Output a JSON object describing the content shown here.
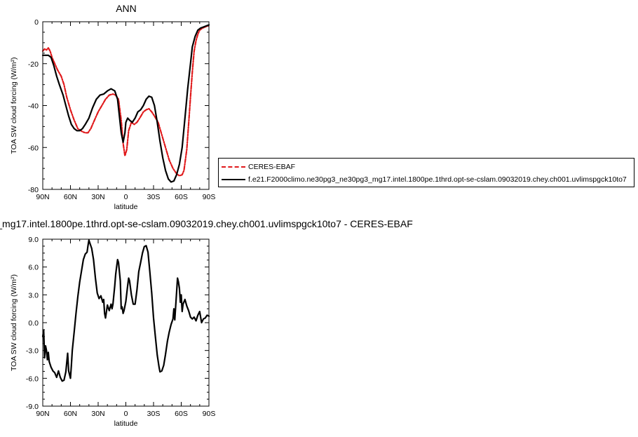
{
  "chart_data": [
    {
      "type": "line",
      "title": "ANN",
      "xlabel": "latitude",
      "ylabel": "TOA SW cloud forcing (W/m²)",
      "xlim": [
        90,
        -90
      ],
      "ylim": [
        -80,
        0
      ],
      "xticks": [
        90,
        60,
        30,
        0,
        -30,
        -60,
        -90
      ],
      "xtick_labels": [
        "90N",
        "60N",
        "30N",
        "0",
        "30S",
        "60S",
        "90S"
      ],
      "yticks": [
        0,
        -20,
        -40,
        -60,
        -80
      ],
      "ytick_labels": [
        "0",
        "-20",
        "-40",
        "-60",
        "-80"
      ],
      "legend_position": "right",
      "grid": false,
      "series": [
        {
          "name": "CERES-EBAF",
          "color": "#e0191b",
          "style": "dash-dot",
          "points": [
            [
              90,
              -14
            ],
            [
              88,
              -13
            ],
            [
              86,
              -13.5
            ],
            [
              84,
              -12.5
            ],
            [
              82,
              -14
            ],
            [
              80,
              -17
            ],
            [
              77,
              -20
            ],
            [
              74,
              -23
            ],
            [
              70,
              -26
            ],
            [
              67,
              -30
            ],
            [
              64,
              -36
            ],
            [
              60,
              -42
            ],
            [
              56,
              -47
            ],
            [
              52,
              -51
            ],
            [
              47,
              -52.5
            ],
            [
              44,
              -53
            ],
            [
              41,
              -53
            ],
            [
              38,
              -51
            ],
            [
              34,
              -47
            ],
            [
              30,
              -43
            ],
            [
              26,
              -40
            ],
            [
              22,
              -37
            ],
            [
              18,
              -35
            ],
            [
              14,
              -34.5
            ],
            [
              11,
              -35
            ],
            [
              8,
              -37
            ],
            [
              5,
              -47
            ],
            [
              3,
              -58
            ],
            [
              1,
              -64
            ],
            [
              -1,
              -61
            ],
            [
              -3,
              -52
            ],
            [
              -6,
              -48
            ],
            [
              -9,
              -49
            ],
            [
              -12,
              -48
            ],
            [
              -15,
              -46
            ],
            [
              -19,
              -43
            ],
            [
              -22,
              -42
            ],
            [
              -25,
              -41.5
            ],
            [
              -28,
              -43
            ],
            [
              -31,
              -45
            ],
            [
              -35,
              -48
            ],
            [
              -39,
              -54
            ],
            [
              -43,
              -60
            ],
            [
              -47,
              -66
            ],
            [
              -51,
              -70
            ],
            [
              -55,
              -72.5
            ],
            [
              -58,
              -73.5
            ],
            [
              -61,
              -73
            ],
            [
              -63,
              -71
            ],
            [
              -66,
              -61
            ],
            [
              -68,
              -49
            ],
            [
              -70,
              -36
            ],
            [
              -72,
              -24
            ],
            [
              -74,
              -14
            ],
            [
              -76,
              -9
            ],
            [
              -78,
              -6
            ],
            [
              -80,
              -4
            ],
            [
              -83,
              -3
            ],
            [
              -86,
              -2.5
            ],
            [
              -88,
              -2
            ],
            [
              -90,
              -2
            ]
          ]
        },
        {
          "name": "f.e21.F2000climo.ne30pg3_ne30pg3_mg17.intel.1800pe.1thrd.opt-se-cslam.09032019.chey.ch001.uvlimspgck10to7",
          "color": "#000000",
          "style": "solid",
          "points": [
            [
              90,
              -16
            ],
            [
              87,
              -16
            ],
            [
              84,
              -16
            ],
            [
              81,
              -17
            ],
            [
              78,
              -21
            ],
            [
              75,
              -26
            ],
            [
              72,
              -30
            ],
            [
              68,
              -35
            ],
            [
              65,
              -40
            ],
            [
              62,
              -45
            ],
            [
              59,
              -49
            ],
            [
              56,
              -51
            ],
            [
              53,
              -52
            ],
            [
              50,
              -52
            ],
            [
              47,
              -51
            ],
            [
              44,
              -49
            ],
            [
              40,
              -46
            ],
            [
              36,
              -41
            ],
            [
              32,
              -37
            ],
            [
              28,
              -35
            ],
            [
              24,
              -34.5
            ],
            [
              20,
              -33
            ],
            [
              16,
              -32
            ],
            [
              12,
              -33
            ],
            [
              9,
              -37
            ],
            [
              7,
              -45
            ],
            [
              5,
              -53
            ],
            [
              3,
              -57.5
            ],
            [
              1,
              -53
            ],
            [
              0,
              -48
            ],
            [
              -2,
              -46
            ],
            [
              -4,
              -47
            ],
            [
              -7,
              -48
            ],
            [
              -10,
              -46
            ],
            [
              -13,
              -43
            ],
            [
              -16,
              -42
            ],
            [
              -19,
              -40
            ],
            [
              -22,
              -37
            ],
            [
              -25,
              -35.5
            ],
            [
              -28,
              -36
            ],
            [
              -31,
              -40
            ],
            [
              -34,
              -48
            ],
            [
              -37,
              -57
            ],
            [
              -40,
              -65
            ],
            [
              -43,
              -71
            ],
            [
              -46,
              -75
            ],
            [
              -49,
              -76.5
            ],
            [
              -52,
              -76
            ],
            [
              -55,
              -73
            ],
            [
              -58,
              -68
            ],
            [
              -61,
              -60
            ],
            [
              -64,
              -46
            ],
            [
              -67,
              -32
            ],
            [
              -70,
              -20
            ],
            [
              -72,
              -12
            ],
            [
              -75,
              -7
            ],
            [
              -78,
              -4
            ],
            [
              -81,
              -3
            ],
            [
              -84,
              -2.5
            ],
            [
              -87,
              -2
            ],
            [
              -90,
              -1.5
            ]
          ]
        }
      ]
    },
    {
      "type": "line",
      "title": "_mg17.intel.1800pe.1thrd.opt-se-cslam.09032019.chey.ch001.uvlimspgck10to7 - CERES-EBAF",
      "xlabel": "latitude",
      "ylabel": "TOA SW cloud forcing (W/m²)",
      "xlim": [
        90,
        -90
      ],
      "ylim": [
        -9,
        9
      ],
      "xticks": [
        90,
        60,
        30,
        0,
        -30,
        -60,
        -90
      ],
      "xtick_labels": [
        "90N",
        "60N",
        "30N",
        "0",
        "30S",
        "60S",
        "90S"
      ],
      "yticks": [
        9,
        6,
        3,
        0,
        -3,
        -6,
        -9
      ],
      "ytick_labels": [
        "9.0",
        "6.0",
        "3.0",
        "0.0",
        "-3.0",
        "-6.0",
        "-9.0"
      ],
      "grid": false,
      "series": [
        {
          "name": "",
          "color": "#000000",
          "style": "solid",
          "points": [
            [
              90,
              -1.5
            ],
            [
              89,
              -0.8
            ],
            [
              88,
              -3.8
            ],
            [
              87,
              -2.5
            ],
            [
              86,
              -3.0
            ],
            [
              85,
              -4.0
            ],
            [
              84,
              -3.2
            ],
            [
              83,
              -4.2
            ],
            [
              81,
              -4.8
            ],
            [
              79,
              -5.2
            ],
            [
              77,
              -5.4
            ],
            [
              75,
              -5.9
            ],
            [
              73,
              -5.2
            ],
            [
              71,
              -5.9
            ],
            [
              69,
              -6.3
            ],
            [
              67,
              -6.2
            ],
            [
              65,
              -5.3
            ],
            [
              63,
              -3.3
            ],
            [
              62,
              -5.2
            ],
            [
              60,
              -6.0
            ],
            [
              59,
              -4.6
            ],
            [
              58,
              -3.0
            ],
            [
              56,
              -1.0
            ],
            [
              54,
              1.0
            ],
            [
              52,
              2.8
            ],
            [
              50,
              4.4
            ],
            [
              48,
              5.6
            ],
            [
              46,
              6.8
            ],
            [
              44,
              7.4
            ],
            [
              42,
              7.6
            ],
            [
              41,
              8.3
            ],
            [
              40,
              8.9
            ],
            [
              39,
              8.6
            ],
            [
              37,
              8.0
            ],
            [
              35,
              6.8
            ],
            [
              33,
              4.8
            ],
            [
              31,
              3.2
            ],
            [
              29,
              2.6
            ],
            [
              27,
              2.9
            ],
            [
              25,
              2.2
            ],
            [
              24,
              2.5
            ],
            [
              23,
              1.0
            ],
            [
              22,
              0.5
            ],
            [
              20,
              1.9
            ],
            [
              18,
              1.3
            ],
            [
              16,
              2.0
            ],
            [
              15,
              1.5
            ],
            [
              14,
              2.0
            ],
            [
              12,
              4.0
            ],
            [
              11,
              5.2
            ],
            [
              10,
              6.0
            ],
            [
              9,
              6.8
            ],
            [
              8,
              6.5
            ],
            [
              6,
              4.5
            ],
            [
              5,
              1.5
            ],
            [
              4,
              1.7
            ],
            [
              3,
              1.0
            ],
            [
              2,
              1.3
            ],
            [
              0,
              2.3
            ],
            [
              -2,
              4.0
            ],
            [
              -3,
              4.8
            ],
            [
              -4,
              4.5
            ],
            [
              -6,
              3.0
            ],
            [
              -8,
              2.0
            ],
            [
              -10,
              2.0
            ],
            [
              -12,
              3.5
            ],
            [
              -14,
              5.5
            ],
            [
              -16,
              6.5
            ],
            [
              -18,
              7.5
            ],
            [
              -20,
              8.2
            ],
            [
              -22,
              8.3
            ],
            [
              -24,
              7.6
            ],
            [
              -26,
              5.5
            ],
            [
              -28,
              3.2
            ],
            [
              -30,
              0.5
            ],
            [
              -32,
              -1.5
            ],
            [
              -34,
              -3.5
            ],
            [
              -36,
              -4.8
            ],
            [
              -37,
              -5.3
            ],
            [
              -39,
              -5.2
            ],
            [
              -41,
              -4.6
            ],
            [
              -43,
              -3.4
            ],
            [
              -45,
              -2.0
            ],
            [
              -47,
              -1.0
            ],
            [
              -49,
              -0.2
            ],
            [
              -51,
              0.4
            ],
            [
              -52,
              1.5
            ],
            [
              -53,
              0.3
            ],
            [
              -54,
              1.8
            ],
            [
              -55,
              3.3
            ],
            [
              -56,
              4.8
            ],
            [
              -57,
              4.4
            ],
            [
              -58,
              3.7
            ],
            [
              -59,
              2.2
            ],
            [
              -60,
              3.0
            ],
            [
              -61,
              1.2
            ],
            [
              -62,
              2.0
            ],
            [
              -64,
              2.5
            ],
            [
              -66,
              1.8
            ],
            [
              -68,
              1.3
            ],
            [
              -70,
              0.6
            ],
            [
              -72,
              0.4
            ],
            [
              -74,
              0.6
            ],
            [
              -76,
              0.2
            ],
            [
              -78,
              0.8
            ],
            [
              -80,
              1.2
            ],
            [
              -82,
              0.0
            ],
            [
              -84,
              0.4
            ],
            [
              -86,
              0.5
            ],
            [
              -88,
              0.8
            ],
            [
              -90,
              0.7
            ]
          ]
        }
      ]
    }
  ]
}
